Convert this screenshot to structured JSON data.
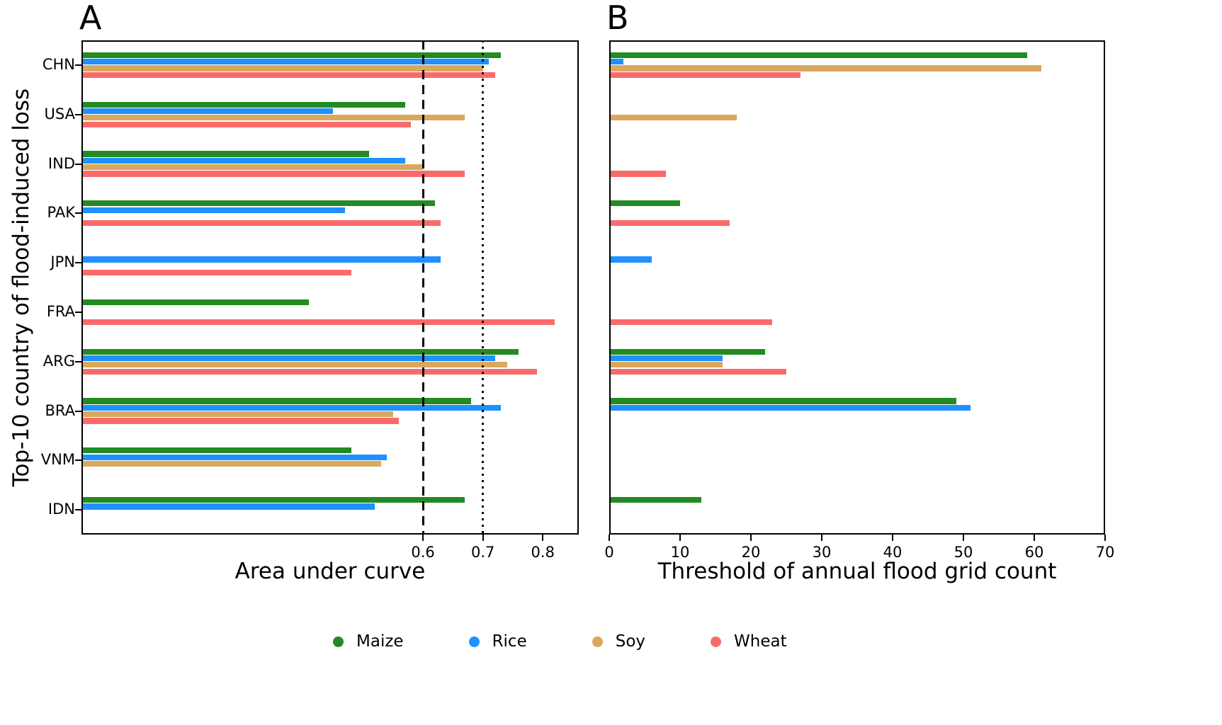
{
  "figure": {
    "panel_a_label": "A",
    "panel_b_label": "B",
    "ylabel": "Top-10 country of flood-induced loss",
    "legend": [
      {
        "label": "Maize",
        "color": "#228B22"
      },
      {
        "label": "Rice",
        "color": "#1E90FF"
      },
      {
        "label": "Soy",
        "color": "#DAA85C"
      },
      {
        "label": "Wheat",
        "color": "#F96B6B"
      }
    ]
  },
  "chart_data": [
    {
      "type": "bar",
      "panel": "A",
      "orientation": "horizontal",
      "xlabel": "Area under curve",
      "categories": [
        "CHN",
        "USA",
        "IND",
        "PAK",
        "JPN",
        "FRA",
        "ARG",
        "BRA",
        "VNM",
        "IDN"
      ],
      "series": [
        {
          "name": "Maize",
          "color": "#228B22",
          "values": [
            0.73,
            0.57,
            0.51,
            0.62,
            null,
            0.41,
            0.76,
            0.68,
            0.48,
            0.67
          ]
        },
        {
          "name": "Rice",
          "color": "#1E90FF",
          "values": [
            0.71,
            0.45,
            0.57,
            0.47,
            0.63,
            null,
            0.72,
            0.73,
            0.54,
            0.52
          ]
        },
        {
          "name": "Soy",
          "color": "#DAA85C",
          "values": [
            0.7,
            0.67,
            0.6,
            null,
            null,
            null,
            0.74,
            0.55,
            0.53,
            null
          ]
        },
        {
          "name": "Wheat",
          "color": "#F96B6B",
          "values": [
            0.72,
            0.58,
            0.67,
            0.63,
            0.48,
            0.82,
            0.79,
            0.56,
            null,
            null
          ]
        }
      ],
      "xlim": [
        0.03,
        0.86
      ],
      "xticks": [
        0.6,
        0.7,
        0.8
      ],
      "xtick_labels": [
        "0.6",
        "0.7",
        "0.8"
      ],
      "reference_lines": [
        {
          "x": 0.6,
          "style": "dashed"
        },
        {
          "x": 0.7,
          "style": "dotted"
        }
      ],
      "grid": false,
      "legend_position": "bottom"
    },
    {
      "type": "bar",
      "panel": "B",
      "orientation": "horizontal",
      "xlabel": "Threshold of annual flood grid count",
      "categories": [
        "CHN",
        "USA",
        "IND",
        "PAK",
        "JPN",
        "FRA",
        "ARG",
        "BRA",
        "VNM",
        "IDN"
      ],
      "series": [
        {
          "name": "Maize",
          "color": "#228B22",
          "values": [
            59,
            null,
            null,
            10,
            null,
            null,
            22,
            49,
            null,
            13
          ]
        },
        {
          "name": "Rice",
          "color": "#1E90FF",
          "values": [
            2,
            null,
            null,
            null,
            6,
            null,
            16,
            51,
            null,
            null
          ]
        },
        {
          "name": "Soy",
          "color": "#DAA85C",
          "values": [
            61,
            18,
            null,
            null,
            null,
            null,
            16,
            null,
            null,
            null
          ]
        },
        {
          "name": "Wheat",
          "color": "#F96B6B",
          "values": [
            27,
            null,
            8,
            17,
            null,
            23,
            25,
            null,
            null,
            null
          ]
        }
      ],
      "xlim": [
        0,
        70
      ],
      "xticks": [
        0,
        10,
        20,
        30,
        40,
        50,
        60,
        70
      ],
      "xtick_labels": [
        "0",
        "10",
        "20",
        "30",
        "40",
        "50",
        "60",
        "70"
      ],
      "reference_lines": [],
      "grid": false,
      "legend_position": "bottom"
    }
  ]
}
